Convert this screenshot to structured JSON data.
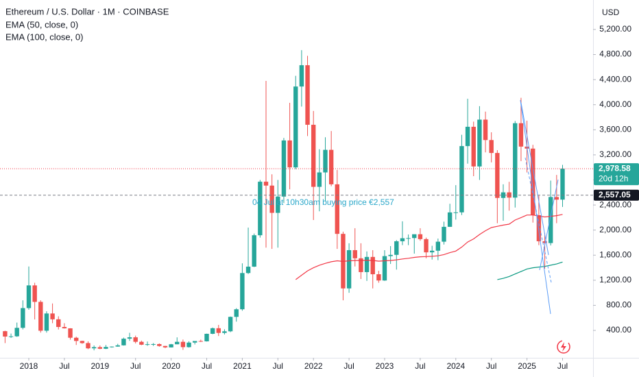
{
  "chart_data": {
    "type": "candlestick",
    "title": "Ethereum / U.S. Dollar · 1M · COINBASE",
    "currency": "USD",
    "annotation": "04 Jul at 10h30am buying price €2,557",
    "up_color": "#26a69a",
    "down_color": "#ef5350",
    "grid": false,
    "x": [
      "2017-09",
      "2017-10",
      "2017-11",
      "2017-12",
      "2018-01",
      "2018-02",
      "2018-03",
      "2018-04",
      "2018-05",
      "2018-06",
      "2018-07",
      "2018-08",
      "2018-09",
      "2018-10",
      "2018-11",
      "2018-12",
      "2019-01",
      "2019-02",
      "2019-03",
      "2019-04",
      "2019-05",
      "2019-06",
      "2019-07",
      "2019-08",
      "2019-09",
      "2019-10",
      "2019-11",
      "2019-12",
      "2020-01",
      "2020-02",
      "2020-03",
      "2020-04",
      "2020-05",
      "2020-06",
      "2020-07",
      "2020-08",
      "2020-09",
      "2020-10",
      "2020-11",
      "2020-12",
      "2021-01",
      "2021-02",
      "2021-03",
      "2021-04",
      "2021-05",
      "2021-06",
      "2021-07",
      "2021-08",
      "2021-09",
      "2021-10",
      "2021-11",
      "2021-12",
      "2022-01",
      "2022-02",
      "2022-03",
      "2022-04",
      "2022-05",
      "2022-06",
      "2022-07",
      "2022-08",
      "2022-09",
      "2022-10",
      "2022-11",
      "2022-12",
      "2023-01",
      "2023-02",
      "2023-03",
      "2023-04",
      "2023-05",
      "2023-06",
      "2023-07",
      "2023-08",
      "2023-09",
      "2023-10",
      "2023-11",
      "2023-12",
      "2024-01",
      "2024-02",
      "2024-03",
      "2024-04",
      "2024-05",
      "2024-06",
      "2024-07",
      "2024-08",
      "2024-09",
      "2024-10",
      "2024-11",
      "2024-12",
      "2025-01",
      "2025-02",
      "2025-03",
      "2025-04",
      "2025-05",
      "2025-06",
      "2025-07"
    ],
    "open": [
      388,
      302,
      306,
      441,
      756,
      1118,
      855,
      395,
      670,
      577,
      455,
      433,
      283,
      232,
      198,
      114,
      133,
      107,
      136,
      142,
      162,
      268,
      290,
      218,
      172,
      180,
      182,
      152,
      129,
      179,
      218,
      133,
      206,
      231,
      226,
      346,
      435,
      360,
      386,
      616,
      737,
      1315,
      1417,
      1918,
      2772,
      2710,
      2275,
      2535,
      3430,
      3000,
      4290,
      4630,
      3680,
      2690,
      2920,
      3280,
      2730,
      1940,
      1070,
      1680,
      1550,
      1330,
      1572,
      1296,
      1196,
      1585,
      1605,
      1822,
      1870,
      1873,
      1934,
      1856,
      1645,
      1671,
      1815,
      2052,
      2282,
      2283,
      3340,
      3648,
      3015,
      3762,
      3436,
      3230,
      2513,
      2602,
      2518,
      3705,
      3332,
      3300,
      2237,
      1822,
      1793,
      2528,
      2486
    ],
    "high": [
      395,
      350,
      525,
      880,
      1420,
      1160,
      880,
      705,
      830,
      625,
      515,
      435,
      300,
      236,
      225,
      160,
      160,
      167,
      145,
      186,
      285,
      362,
      317,
      237,
      222,
      198,
      193,
      155,
      184,
      289,
      254,
      227,
      228,
      252,
      349,
      446,
      488,
      418,
      622,
      755,
      1470,
      2040,
      1945,
      2800,
      4380,
      2890,
      2800,
      3470,
      4030,
      4460,
      4870,
      4780,
      3900,
      3290,
      3480,
      3580,
      2960,
      1975,
      1790,
      2030,
      1790,
      1660,
      1680,
      1350,
      1680,
      1745,
      1840,
      2140,
      1930,
      1930,
      2030,
      1880,
      1750,
      1865,
      2135,
      2420,
      2717,
      3520,
      4095,
      3730,
      3977,
      3890,
      3560,
      3275,
      2730,
      2770,
      3740,
      4110,
      3745,
      3360,
      2550,
      1955,
      2790,
      2880,
      3040
    ],
    "low": [
      198,
      280,
      297,
      416,
      730,
      575,
      365,
      365,
      515,
      415,
      430,
      252,
      168,
      186,
      101,
      82,
      100,
      102,
      125,
      140,
      158,
      233,
      192,
      165,
      155,
      152,
      139,
      117,
      127,
      179,
      90,
      126,
      176,
      215,
      223,
      340,
      310,
      335,
      372,
      540,
      714,
      1300,
      1410,
      1880,
      1720,
      1700,
      1720,
      2430,
      2650,
      2970,
      3970,
      3500,
      2160,
      2300,
      2460,
      2700,
      1700,
      880,
      1000,
      1420,
      1220,
      1190,
      1070,
      1160,
      1190,
      1460,
      1370,
      1760,
      1760,
      1625,
      1830,
      1550,
      1530,
      1520,
      1770,
      2050,
      2167,
      2240,
      3060,
      2860,
      2800,
      3240,
      3080,
      2110,
      2150,
      2310,
      2360,
      3100,
      2920,
      2120,
      1760,
      1385,
      1755,
      2110,
      2370
    ],
    "close": [
      302,
      306,
      441,
      756,
      1118,
      855,
      395,
      670,
      577,
      455,
      433,
      283,
      232,
      198,
      114,
      133,
      107,
      136,
      142,
      162,
      268,
      290,
      218,
      172,
      180,
      182,
      152,
      129,
      179,
      218,
      133,
      206,
      231,
      226,
      346,
      435,
      360,
      386,
      616,
      737,
      1315,
      1417,
      1918,
      2772,
      2710,
      2275,
      2535,
      3430,
      3000,
      4290,
      4630,
      3680,
      2690,
      2920,
      3280,
      2730,
      1940,
      1070,
      1680,
      1550,
      1330,
      1572,
      1296,
      1196,
      1585,
      1605,
      1822,
      1870,
      1873,
      1934,
      1856,
      1645,
      1671,
      1815,
      2052,
      2282,
      2283,
      3340,
      3648,
      3015,
      3762,
      3436,
      3230,
      2513,
      2602,
      2518,
      3705,
      3332,
      3300,
      2237,
      1822,
      1793,
      2528,
      2486,
      2978.58
    ],
    "series": [
      {
        "name": "EMA (50, close, 0)",
        "color": "#f23645",
        "values": [
          null,
          null,
          null,
          null,
          null,
          null,
          null,
          null,
          null,
          null,
          null,
          null,
          null,
          null,
          null,
          null,
          null,
          null,
          null,
          null,
          null,
          null,
          null,
          null,
          null,
          null,
          null,
          null,
          null,
          null,
          null,
          null,
          null,
          null,
          null,
          null,
          null,
          null,
          null,
          null,
          null,
          null,
          null,
          null,
          null,
          null,
          null,
          null,
          null,
          1210,
          1280,
          1350,
          1400,
          1440,
          1470,
          1495,
          1510,
          1500,
          1510,
          1515,
          1515,
          1520,
          1515,
          1505,
          1510,
          1515,
          1525,
          1540,
          1550,
          1565,
          1575,
          1578,
          1582,
          1590,
          1610,
          1640,
          1665,
          1730,
          1810,
          1860,
          1930,
          1990,
          2040,
          2060,
          2080,
          2095,
          2160,
          2200,
          2240,
          2240,
          2225,
          2210,
          2220,
          2230,
          2250
        ]
      },
      {
        "name": "EMA (100, close, 0)",
        "color": "#089981",
        "values": [
          null,
          null,
          null,
          null,
          null,
          null,
          null,
          null,
          null,
          null,
          null,
          null,
          null,
          null,
          null,
          null,
          null,
          null,
          null,
          null,
          null,
          null,
          null,
          null,
          null,
          null,
          null,
          null,
          null,
          null,
          null,
          null,
          null,
          null,
          null,
          null,
          null,
          null,
          null,
          null,
          null,
          null,
          null,
          null,
          null,
          null,
          null,
          null,
          null,
          null,
          null,
          null,
          null,
          null,
          null,
          null,
          null,
          null,
          null,
          null,
          null,
          null,
          null,
          null,
          null,
          null,
          null,
          null,
          null,
          null,
          null,
          null,
          null,
          null,
          null,
          null,
          null,
          null,
          null,
          null,
          null,
          null,
          null,
          1210,
          1230,
          1260,
          1300,
          1340,
          1380,
          1400,
          1410,
          1420,
          1440,
          1460,
          1490
        ]
      }
    ],
    "price_lines": [
      {
        "value": 2978.58,
        "label": "2,978.58",
        "sublabel": "20d 12h",
        "color": "#26a69a",
        "style": "dotted"
      },
      {
        "value": 2557.05,
        "label": "2,557.05",
        "color": "#131722",
        "style": "dashed"
      }
    ],
    "ylim": [
      -37,
      5670
    ],
    "yticks": [
      {
        "value": 400,
        "label": "400.00"
      },
      {
        "value": 800,
        "label": "800.00"
      },
      {
        "value": 1200,
        "label": "1,200.00"
      },
      {
        "value": 1600,
        "label": "1,600.00"
      },
      {
        "value": 2000,
        "label": "2,000.00"
      },
      {
        "value": 2400,
        "label": "2,400.00"
      },
      {
        "value": 2800,
        "label": "2,800.00"
      },
      {
        "value": 3200,
        "label": "3,200.00"
      },
      {
        "value": 3600,
        "label": "3,600.00"
      },
      {
        "value": 4000,
        "label": "4,000.00"
      },
      {
        "value": 4400,
        "label": "4,400.00"
      },
      {
        "value": 4800,
        "label": "4,800.00"
      },
      {
        "value": 5200,
        "label": "5,200.00"
      }
    ],
    "xticks": [
      {
        "value": "2018-01",
        "label": "2018"
      },
      {
        "value": "2018-07",
        "label": "Jul"
      },
      {
        "value": "2019-01",
        "label": "2019"
      },
      {
        "value": "2019-07",
        "label": "Jul"
      },
      {
        "value": "2020-01",
        "label": "2020"
      },
      {
        "value": "2020-07",
        "label": "Jul"
      },
      {
        "value": "2021-01",
        "label": "2021"
      },
      {
        "value": "2021-07",
        "label": "Jul"
      },
      {
        "value": "2022-01",
        "label": "2022"
      },
      {
        "value": "2022-07",
        "label": "Jul"
      },
      {
        "value": "2023-01",
        "label": "2023"
      },
      {
        "value": "2023-07",
        "label": "Jul"
      },
      {
        "value": "2024-01",
        "label": "2024"
      },
      {
        "value": "2024-07",
        "label": "Jul"
      },
      {
        "value": "2025-01",
        "label": "2025"
      },
      {
        "value": "2025-07",
        "label": "Jul"
      }
    ]
  }
}
